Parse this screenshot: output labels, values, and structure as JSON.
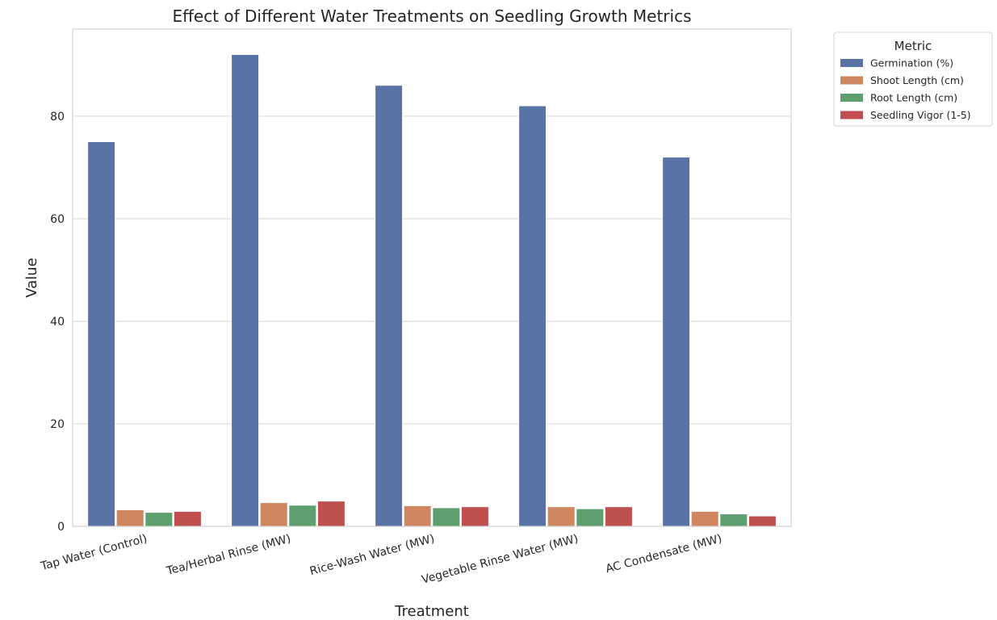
{
  "chart_data": {
    "type": "bar",
    "title": "Effect of Different Water Treatments on Seedling Growth Metrics",
    "xlabel": "Treatment",
    "ylabel": "Value",
    "ylim": [
      0,
      97
    ],
    "yticks": [
      0,
      20,
      40,
      60,
      80
    ],
    "grid": true,
    "legend_position": "outside-top-right",
    "legend_title": "Metric",
    "categories": [
      "Tap Water (Control)",
      "Tea/Herbal Rinse (MW)",
      "Rice-Wash Water (MW)",
      "Vegetable Rinse Water (MW)",
      "AC Condensate (MW)"
    ],
    "series": [
      {
        "name": "Germination (%)",
        "color": "#5874a6",
        "values": [
          75,
          92,
          86,
          82,
          72
        ]
      },
      {
        "name": "Shoot Length (cm)",
        "color": "#d0865e",
        "values": [
          3.2,
          4.6,
          4.0,
          3.8,
          2.9
        ]
      },
      {
        "name": "Root Length (cm)",
        "color": "#5f9e6e",
        "values": [
          2.7,
          4.1,
          3.6,
          3.4,
          2.4
        ]
      },
      {
        "name": "Seedling Vigor (1-5)",
        "color": "#c0504f",
        "values": [
          2.9,
          4.9,
          3.8,
          3.8,
          2.0
        ]
      }
    ]
  }
}
